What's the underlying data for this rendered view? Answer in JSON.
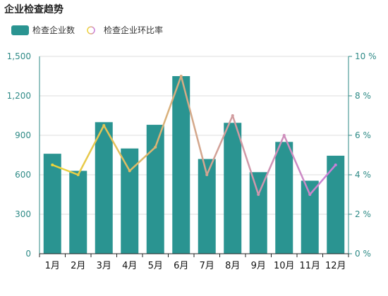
{
  "chart_data": {
    "type": "bar",
    "title": "企业检查趋势",
    "categories": [
      "1月",
      "2月",
      "3月",
      "4月",
      "5月",
      "6月",
      "7月",
      "8月",
      "9月",
      "10月",
      "11月",
      "12月"
    ],
    "series": [
      {
        "name": "检查企业数",
        "type": "bar",
        "axis": "left",
        "color": "#2a9491",
        "values": [
          760,
          630,
          1000,
          800,
          980,
          1350,
          720,
          995,
          620,
          850,
          555,
          745
        ]
      },
      {
        "name": "检查企业环比率",
        "type": "line",
        "axis": "right",
        "unit": "%",
        "values": [
          4.5,
          4.0,
          6.5,
          4.2,
          5.4,
          9.0,
          4.0,
          7.0,
          3.0,
          6.0,
          3.0,
          4.5
        ]
      }
    ],
    "ylim_left": [
      0,
      1500
    ],
    "yticks_left": [
      "0",
      "300",
      "600",
      "900",
      "1,200",
      "1,500"
    ],
    "ylim_right": [
      0,
      10
    ],
    "yticks_right": [
      "0 %",
      "2 %",
      "4 %",
      "6 %",
      "8 %",
      "10 %"
    ],
    "line_gradient": [
      "#f0d830",
      "#d4a88a",
      "#c97ce0"
    ],
    "grid": true,
    "legend": "top-left"
  }
}
